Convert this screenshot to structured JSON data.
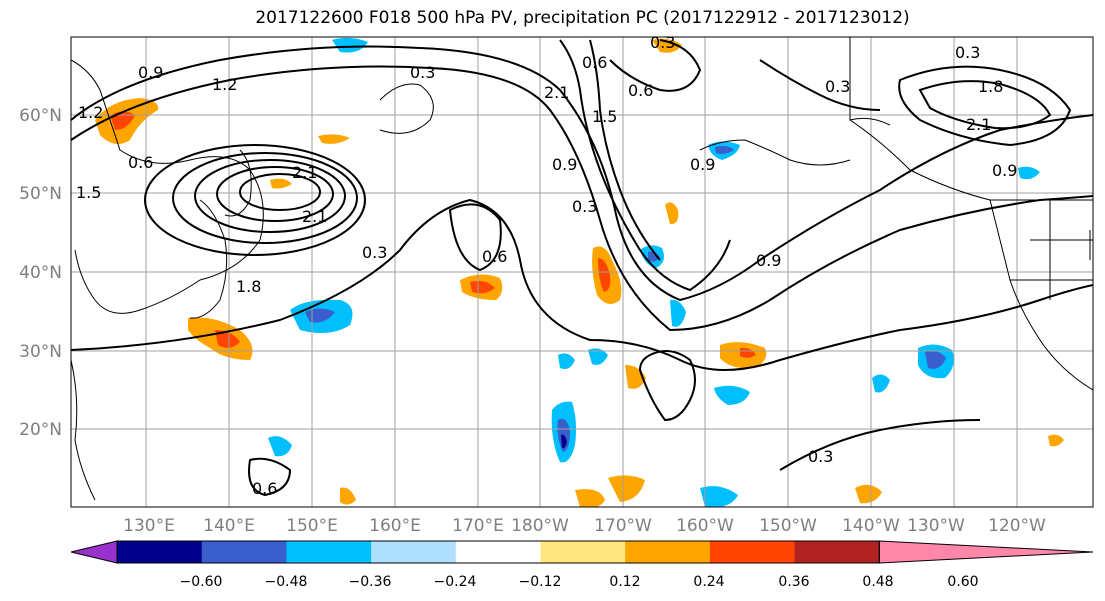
{
  "title": "2017122600 F018 500 hPa PV, precipitation PC (2017122912 - 2017123012)",
  "lat_labels": [
    "60°N",
    "50°N",
    "40°N",
    "30°N",
    "20°N"
  ],
  "lon_labels": [
    "130°E",
    "140°E",
    "150°E",
    "160°E",
    "170°E",
    "180°W",
    "170°W",
    "160°W",
    "150°W",
    "140°W",
    "130°W",
    "120°W"
  ],
  "contour_labels": [
    "0.9",
    "1.2",
    "1.2",
    "0.6",
    "1.5",
    "0.3",
    "2.1",
    "2.1",
    "0.3",
    "0.6",
    "1.8",
    "0.3",
    "0.9",
    "2.1",
    "1.5",
    "0.6",
    "0.3",
    "0.9",
    "0.6",
    "0.3",
    "1.8",
    "2.1",
    "0.9",
    "0.3",
    "0.9",
    "0.3",
    "0.6"
  ],
  "colorbar": {
    "ticks": [
      "−0.60",
      "−0.48",
      "−0.36",
      "−0.24",
      "−0.12",
      "0.12",
      "0.24",
      "0.36",
      "0.48",
      "0.60"
    ],
    "colors": [
      "#9932cc",
      "#00008b",
      "#3a5fcd",
      "#00bfff",
      "#b0e0ff",
      "#ffffff",
      "#ffe680",
      "#ffa500",
      "#ff4500",
      "#b22222",
      "#ff88aa"
    ]
  }
}
